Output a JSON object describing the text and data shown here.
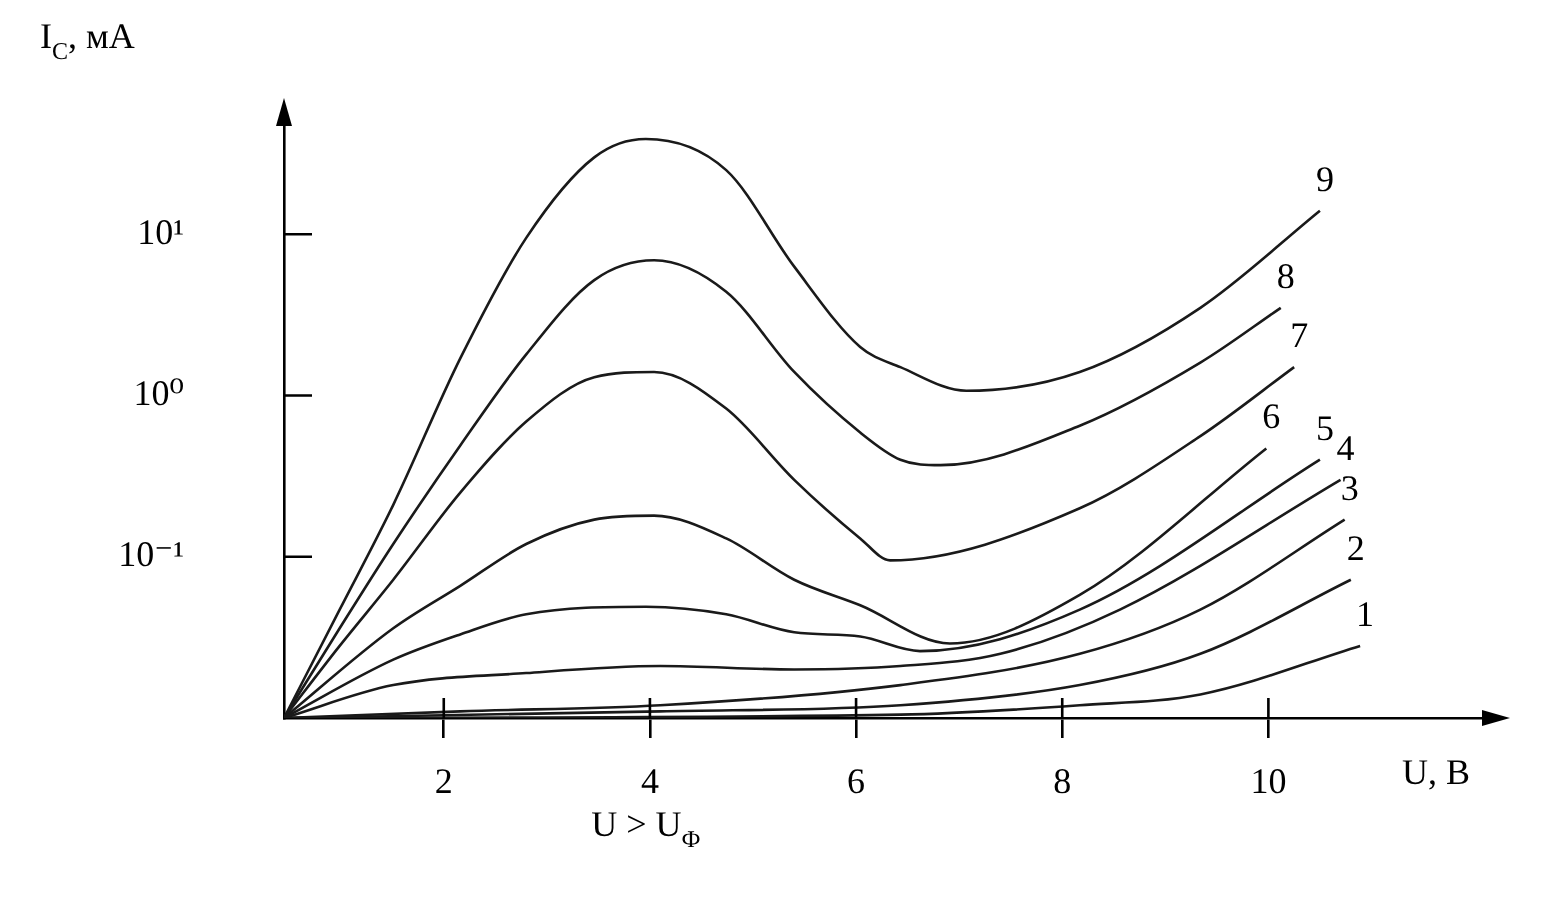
{
  "chart_data": {
    "type": "line",
    "xlabel": "U, В",
    "ylabel": "I$_{С}$, мА",
    "annotations": [
      "U > U$_{Ф}$"
    ],
    "xlim": [
      0.45,
      12.15
    ],
    "xticks": [
      2,
      4,
      6,
      8,
      10
    ],
    "ylim": [
      0.01,
      50
    ],
    "yticks": [
      {
        "value": 0.1,
        "label": "10⁻¹"
      },
      {
        "value": 1,
        "label": "10⁰"
      },
      {
        "value": 10,
        "label": "10¹"
      }
    ],
    "log": "y",
    "grid": false,
    "marker": "none",
    "legend": false,
    "series": [
      {
        "name": "1",
        "color": "#1a1a1a",
        "x": [
          0.45,
          6.43,
          8.17,
          9.34,
          10.89
        ],
        "values": [
          0.01,
          0.0105,
          0.012,
          0.014,
          0.028
        ]
      },
      {
        "name": "2",
        "color": "#1a1a1a",
        "x": [
          0.45,
          4.1,
          6.43,
          8.17,
          9.34,
          10.8
        ],
        "values": [
          0.01,
          0.011,
          0.012,
          0.016,
          0.025,
          0.072
        ]
      },
      {
        "name": "3",
        "color": "#1a1a1a",
        "x": [
          0.45,
          2.16,
          4.1,
          6.43,
          8.17,
          9.34,
          10.74
        ],
        "values": [
          0.01,
          0.011,
          0.012,
          0.016,
          0.025,
          0.047,
          0.17
        ]
      },
      {
        "name": "4",
        "color": "#1a1a1a",
        "x": [
          0.45,
          1.51,
          2.8,
          4.1,
          5.4,
          6.43,
          7.4,
          8.56,
          10.7
        ],
        "values": [
          0.01,
          0.016,
          0.019,
          0.021,
          0.02,
          0.021,
          0.025,
          0.047,
          0.3
        ]
      },
      {
        "name": "5",
        "color": "#1a1a1a",
        "x": [
          0.45,
          1.51,
          2.16,
          2.8,
          3.96,
          4.74,
          5.4,
          6.04,
          6.62,
          8.17,
          10.5
        ],
        "values": [
          0.01,
          0.023,
          0.033,
          0.044,
          0.049,
          0.044,
          0.034,
          0.032,
          0.026,
          0.047,
          0.4
        ]
      },
      {
        "name": "6",
        "color": "#1a1a1a",
        "x": [
          0.45,
          1.51,
          2.16,
          2.8,
          3.46,
          4.04,
          4.74,
          5.4,
          6.04,
          6.91,
          8.17,
          9.98
        ],
        "values": [
          0.01,
          0.036,
          0.066,
          0.12,
          0.17,
          0.18,
          0.13,
          0.072,
          0.05,
          0.029,
          0.058,
          0.47
        ]
      },
      {
        "name": "7",
        "color": "#1a1a1a",
        "x": [
          0.45,
          0.99,
          1.51,
          2.16,
          2.8,
          3.46,
          4.04,
          4.74,
          5.4,
          6.04,
          6.33,
          8.17,
          9.34,
          10.25
        ],
        "values": [
          0.01,
          0.028,
          0.072,
          0.25,
          0.69,
          1.3,
          1.4,
          0.83,
          0.3,
          0.13,
          0.095,
          0.2,
          0.56,
          1.5
        ]
      },
      {
        "name": "8",
        "color": "#1a1a1a",
        "x": [
          0.45,
          0.99,
          1.51,
          2.16,
          2.8,
          3.46,
          4.04,
          4.74,
          5.4,
          6.04,
          6.43,
          6.82,
          8.17,
          9.34,
          10.12
        ],
        "values": [
          0.01,
          0.036,
          0.12,
          0.49,
          1.8,
          5.2,
          6.9,
          4.4,
          1.4,
          0.59,
          0.4,
          0.37,
          0.65,
          1.6,
          3.5
        ]
      },
      {
        "name": "9",
        "color": "#1a1a1a",
        "x": [
          0.45,
          0.99,
          1.51,
          2.16,
          2.8,
          3.46,
          3.96,
          4.74,
          5.4,
          6.04,
          6.43,
          7.07,
          8.17,
          9.34,
          10.5
        ],
        "values": [
          0.01,
          0.047,
          0.21,
          1.7,
          9.5,
          30,
          39,
          25,
          6.3,
          2,
          1.5,
          1.07,
          1.4,
          3.5,
          14
        ]
      }
    ]
  }
}
